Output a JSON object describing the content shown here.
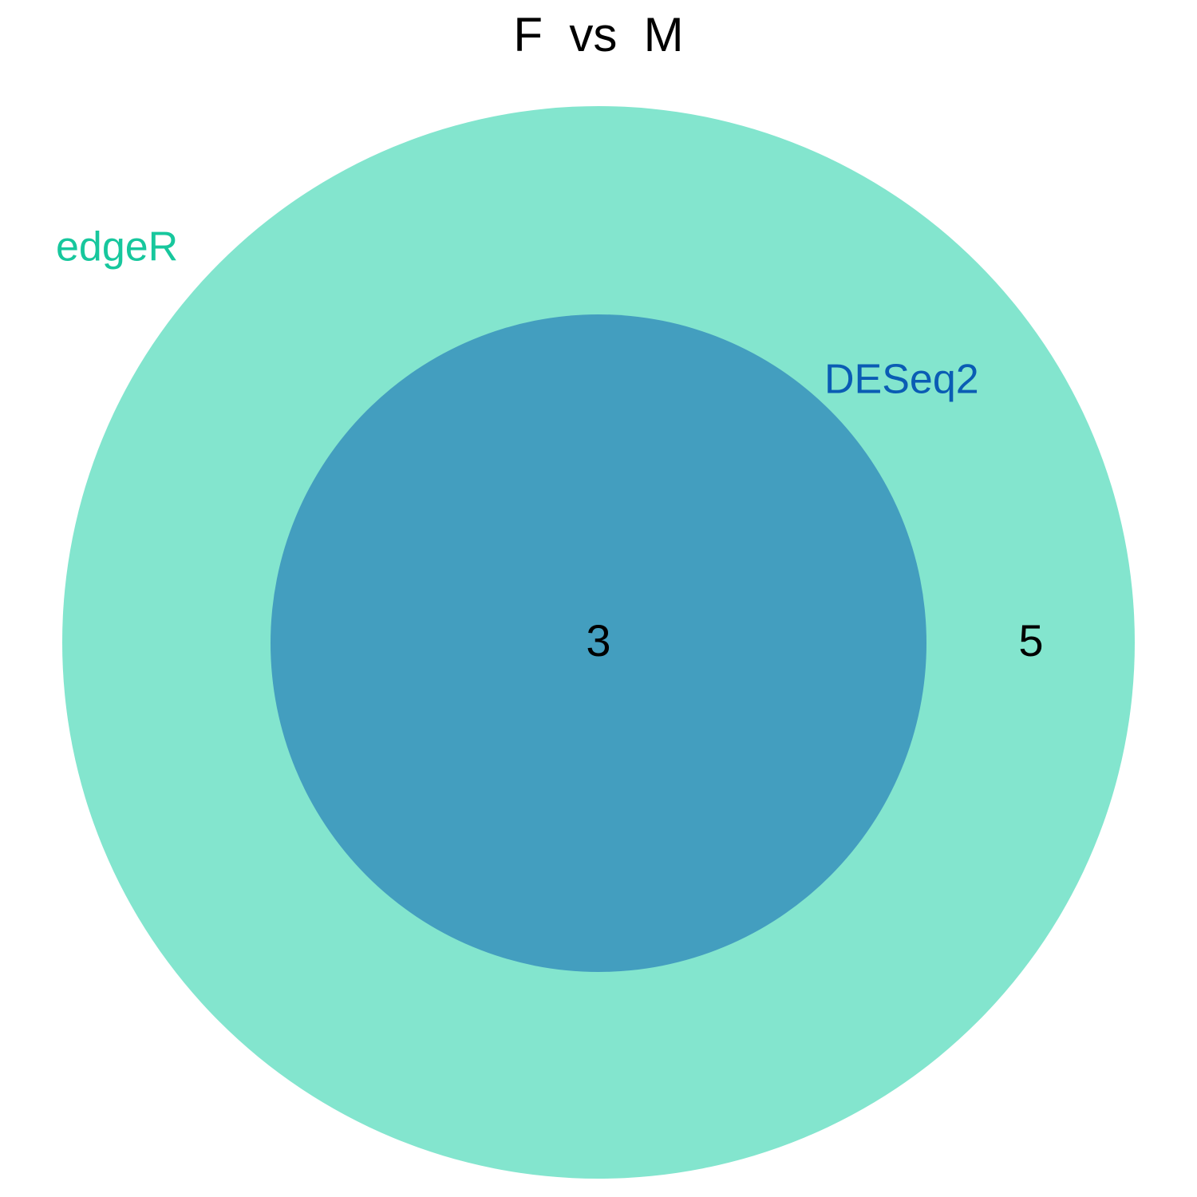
{
  "title": "F  vs  M",
  "sets": [
    {
      "name": "edgeR",
      "color": "#17C79D",
      "fill": "#83E5CE"
    },
    {
      "name": "DESeq2",
      "color": "#0A5CB4",
      "fill": "#439EBF"
    }
  ],
  "regions": {
    "edgeR_only": "5",
    "edgeR_and_DESeq2": "3"
  },
  "colors": {
    "background": "#FFFFFF",
    "text": "#000000"
  }
}
